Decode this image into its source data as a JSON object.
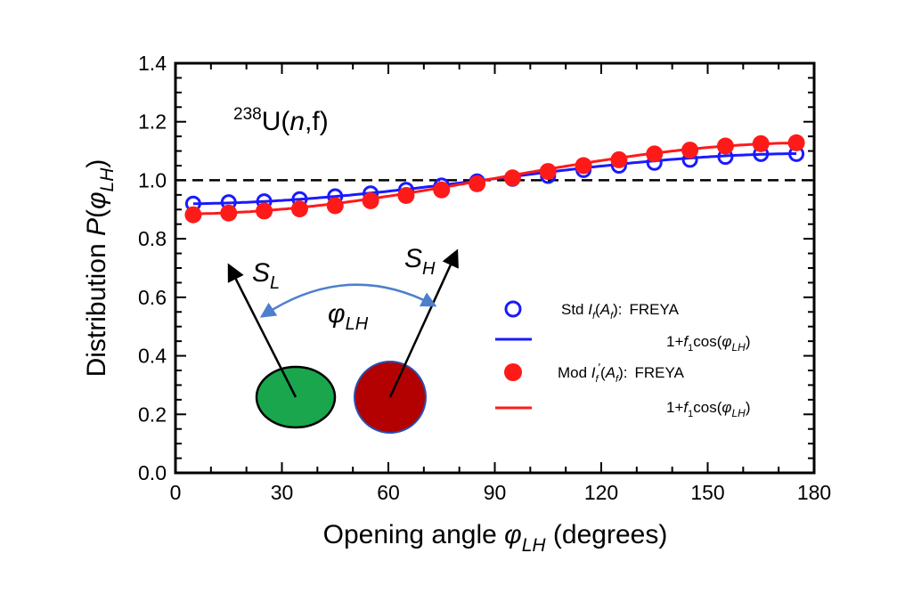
{
  "chart_data": {
    "type": "line",
    "x_ticks": [
      "0",
      "30",
      "60",
      "90",
      "120",
      "150",
      "180"
    ],
    "y_ticks": [
      "0.0",
      "0.2",
      "0.4",
      "0.6",
      "0.8",
      "1.0",
      "1.2",
      "1.4"
    ],
    "xlim": [
      0,
      180
    ],
    "ylim": [
      0,
      1.4
    ],
    "xlabel": {
      "pre": "Opening angle ",
      "symbol": "φ",
      "sub": "LH",
      "post": " (degrees)"
    },
    "ylabel": {
      "pre": "Distribution ",
      "func": "P",
      "open": "(",
      "symbol": "φ",
      "sub": "LH",
      "close": ")"
    },
    "reaction": {
      "sup": "238",
      "pre": "U(",
      "n": "n",
      "post": ",f)"
    },
    "reference_line": {
      "y": 1.0,
      "style": "dashed",
      "color": "#000000"
    },
    "x": [
      5,
      15,
      25,
      35,
      45,
      55,
      65,
      75,
      85,
      95,
      105,
      115,
      125,
      135,
      145,
      155,
      165,
      175
    ],
    "series": [
      {
        "marker": "open-circle",
        "color": "#1a1aff",
        "values": [
          0.92,
          0.925,
          0.928,
          0.935,
          0.945,
          0.955,
          0.967,
          0.982,
          0.996,
          1.005,
          1.015,
          1.035,
          1.05,
          1.06,
          1.07,
          1.08,
          1.09,
          1.09
        ]
      },
      {
        "marker": "filled-circle",
        "color": "#ff1a1a",
        "values": [
          0.882,
          0.888,
          0.895,
          0.902,
          0.913,
          0.93,
          0.948,
          0.967,
          0.988,
          1.008,
          1.03,
          1.05,
          1.07,
          1.09,
          1.103,
          1.117,
          1.125,
          1.128
        ]
      }
    ],
    "fits": [
      {
        "color": "#1a1aff",
        "a": 1.0055,
        "f1": -0.0855
      },
      {
        "color": "#ff1a1a",
        "a": 1.0065,
        "f1": -0.121
      }
    ],
    "legend": {
      "placement": "bottom-right",
      "entries": [
        {
          "kind": "open-circle",
          "color": "#1a1aff",
          "pre": "Std ",
          "I": "I",
          "Isub": "f",
          "Iprime": "",
          "paren_open": "(",
          "A": "A",
          "Asub": "f",
          "paren_close": "):",
          "tail": "FREYA"
        },
        {
          "kind": "line",
          "color": "#1a1aff",
          "pre": "1+",
          "f": "f",
          "fsub": "1",
          "mid": "cos(",
          "symbol": "φ",
          "sub": "LH",
          "close": ")"
        },
        {
          "kind": "filled-circle",
          "color": "#ff1a1a",
          "pre": "Mod ",
          "I": "I",
          "Isub": "f",
          "Iprime": "′",
          "paren_open": "(",
          "A": "A",
          "Asub": "f",
          "paren_close": "):",
          "tail": "FREYA"
        },
        {
          "kind": "line",
          "color": "#ff1a1a",
          "pre": "1+",
          "f": "f",
          "fsub": "1",
          "mid": "cos(",
          "symbol": "φ",
          "sub": "LH",
          "close": ")"
        }
      ]
    },
    "inset": {
      "light_label": {
        "main": "S",
        "sub": "L"
      },
      "heavy_label": {
        "main": "S",
        "sub": "H"
      },
      "angle_label": {
        "symbol": "φ",
        "sub": "LH"
      },
      "light_color": "#1aa64d",
      "heavy_color": "#b30000",
      "arc_color": "#4d7fcc"
    }
  }
}
